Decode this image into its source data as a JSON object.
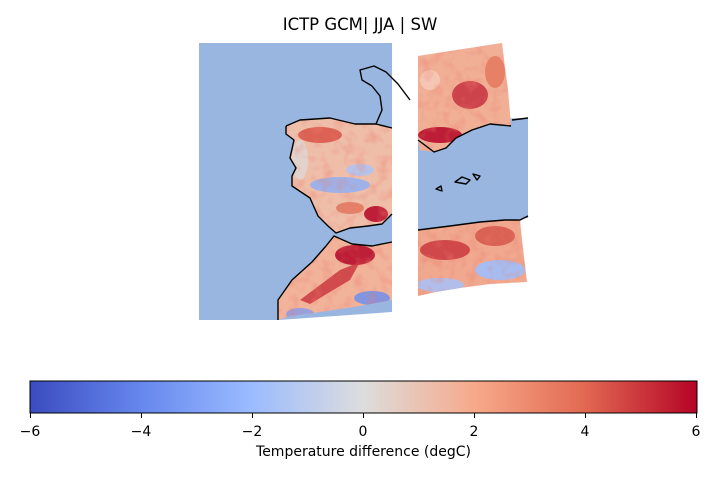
{
  "title": "ICTP GCM| JJA | SW",
  "colorbar": {
    "label": "Temperature difference (degC)",
    "min": -6,
    "max": 6,
    "colormap": "coolwarm",
    "ticks": [
      "−6",
      "−4",
      "−2",
      "0",
      "2",
      "4",
      "6"
    ],
    "tick_values": [
      -6,
      -4,
      -2,
      0,
      2,
      4,
      6
    ]
  },
  "map": {
    "region": "Western Mediterranean",
    "ocean_color": "#98b6e0",
    "coastline_color": "#000000",
    "panels": 4
  }
}
